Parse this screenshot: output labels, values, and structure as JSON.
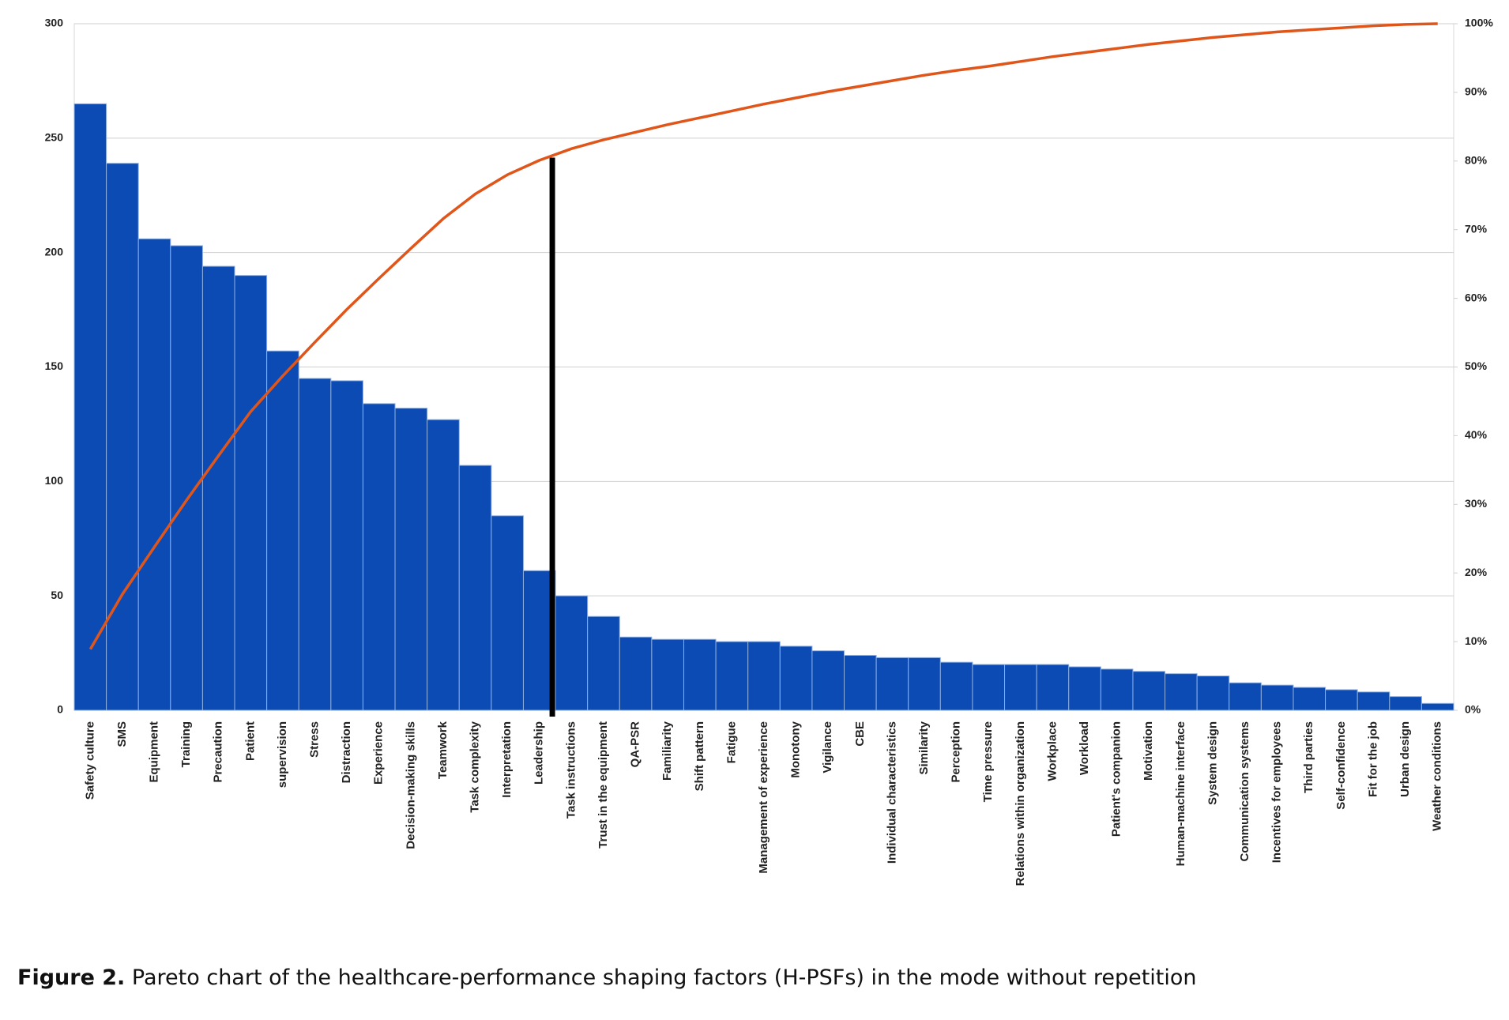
{
  "chart_data": {
    "type": "pareto",
    "categories": [
      "Safety culture",
      "SMS",
      "Equipment",
      "Training",
      "Precaution",
      "Patient",
      "supervision",
      "Stress",
      "Distraction",
      "Experience",
      "Decision-making skills",
      "Teamwork",
      "Task complexity",
      "Interpretation",
      "Leadership",
      "Task instructions",
      "Trust in the equipment",
      "QA-PSR",
      "Familiarity",
      "Shift pattern",
      "Fatigue",
      "Management of experience",
      "Monotony",
      "Vigilance",
      "CBE",
      "Individual characteristics",
      "Similarity",
      "Perception",
      "Time pressure",
      "Relations within organization",
      "Workplace",
      "Workload",
      "Patient's companion",
      "Motivation",
      "Human-machine interface",
      "System design",
      "Communication systems",
      "Incentives for employees",
      "Third parties",
      "Self-confidence",
      "Fit for the job",
      "Urban design",
      "Weather conditions"
    ],
    "series": [
      {
        "type": "bar",
        "color": "#0b4bb3",
        "values": [
          265,
          239,
          206,
          203,
          194,
          190,
          157,
          145,
          144,
          134,
          132,
          127,
          107,
          85,
          61,
          50,
          41,
          32,
          31,
          31,
          30,
          30,
          28,
          26,
          24,
          23,
          23,
          21,
          20,
          20,
          20,
          19,
          18,
          17,
          16,
          15,
          12,
          11,
          10,
          9,
          8,
          6,
          3
        ]
      },
      {
        "type": "line",
        "axis": "y2",
        "color": "#e0561a",
        "values": [
          8.9,
          16.9,
          23.8,
          30.6,
          37.1,
          43.5,
          48.7,
          53.6,
          58.4,
          62.9,
          67.3,
          71.6,
          75.2,
          78.0,
          80.1,
          81.8,
          83.1,
          84.2,
          85.3,
          86.3,
          87.3,
          88.3,
          89.2,
          90.1,
          90.9,
          91.7,
          92.5,
          93.2,
          93.8,
          94.5,
          95.2,
          95.8,
          96.4,
          97.0,
          97.5,
          98.0,
          98.4,
          98.8,
          99.1,
          99.4,
          99.7,
          99.9,
          100
        ]
      }
    ],
    "ylim": [
      0,
      300
    ],
    "yticks": [
      0,
      50,
      100,
      150,
      200,
      250,
      300
    ],
    "y2lim": [
      0,
      100
    ],
    "y2ticks": [
      {
        "value": 0,
        "label": "0%"
      },
      {
        "value": 10,
        "label": "10%"
      },
      {
        "value": 20,
        "label": "20%"
      },
      {
        "value": 30,
        "label": "30%"
      },
      {
        "value": 40,
        "label": "40%"
      },
      {
        "value": 50,
        "label": "50%"
      },
      {
        "value": 60,
        "label": "60%"
      },
      {
        "value": 70,
        "label": "70%"
      },
      {
        "value": 80,
        "label": "80%"
      },
      {
        "value": 90,
        "label": "90%"
      },
      {
        "value": 100,
        "label": "100%"
      }
    ],
    "grid": true,
    "caption_label": "Figure 2.",
    "caption": "Pareto chart of the healthcare-performance shaping factors (H-PSFs) in the mode without repetition"
  }
}
